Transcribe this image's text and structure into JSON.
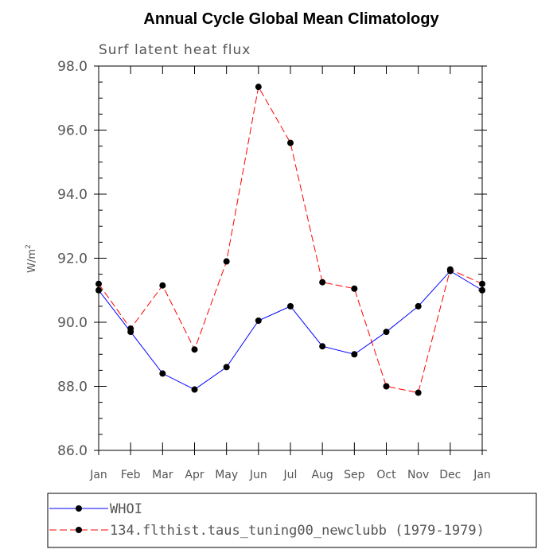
{
  "chart_data": {
    "type": "line",
    "title": "Annual Cycle Global Mean Climatology",
    "subtitle": "Surf latent heat flux",
    "ylabel_base": "W/m",
    "ylabel_sup": "2",
    "ylim": [
      86.0,
      98.0
    ],
    "yticks": [
      "86.0",
      "88.0",
      "90.0",
      "92.0",
      "94.0",
      "96.0",
      "98.0"
    ],
    "categories": [
      "Jan",
      "Feb",
      "Mar",
      "Apr",
      "May",
      "Jun",
      "Jul",
      "Aug",
      "Sep",
      "Oct",
      "Nov",
      "Dec",
      "Jan"
    ],
    "series": [
      {
        "name": "WHOI",
        "color": "#0000ff",
        "dash": "solid",
        "values": [
          91.0,
          89.7,
          88.4,
          87.9,
          88.6,
          90.05,
          90.5,
          89.25,
          89.0,
          89.7,
          90.5,
          91.6,
          91.0
        ]
      },
      {
        "name": "134.flthist.taus_tuning00_newclubb (1979-1979)",
        "color": "#ff0000",
        "dash": "dashed",
        "values": [
          91.2,
          89.8,
          91.15,
          89.15,
          91.9,
          97.35,
          95.6,
          91.25,
          91.05,
          88.0,
          87.8,
          91.65,
          91.2
        ]
      }
    ]
  }
}
